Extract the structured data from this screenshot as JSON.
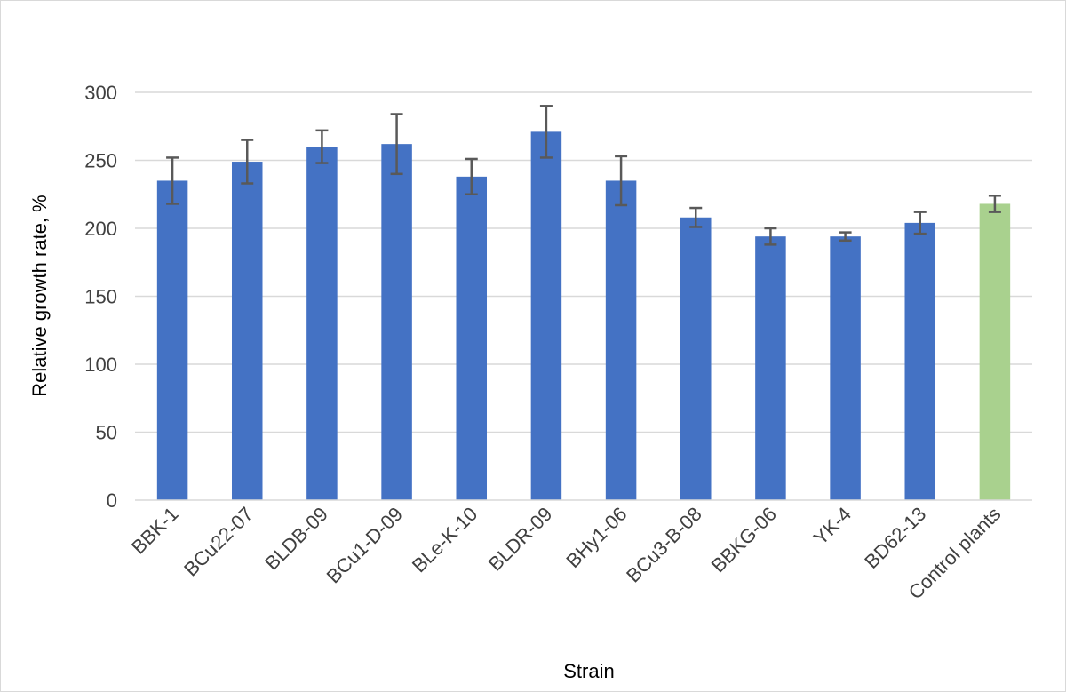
{
  "chart_data": {
    "type": "bar",
    "title": "",
    "xlabel": "Strain",
    "ylabel": "Relative growth rate, %",
    "ylim": [
      0,
      300
    ],
    "yticks": [
      0,
      50,
      100,
      150,
      200,
      250,
      300
    ],
    "grid": true,
    "legend": "none",
    "categories": [
      "BBK-1",
      "BCu22-07",
      "BLDB-09",
      "BCu1-D-09",
      "BLe-K-10",
      "BLDR-09",
      "BHy1-06",
      "BCu3-B-08",
      "BBKG-06",
      "YK-4",
      "BD62-13",
      "Control plants"
    ],
    "values": [
      235,
      249,
      260,
      262,
      238,
      271,
      235,
      208,
      194,
      194,
      204,
      218
    ],
    "error": [
      17,
      16,
      12,
      22,
      13,
      19,
      18,
      7,
      6,
      3,
      8,
      6
    ],
    "colors": [
      "#4472c4",
      "#4472c4",
      "#4472c4",
      "#4472c4",
      "#4472c4",
      "#4472c4",
      "#4472c4",
      "#4472c4",
      "#4472c4",
      "#4472c4",
      "#4472c4",
      "#a9d18e"
    ]
  }
}
